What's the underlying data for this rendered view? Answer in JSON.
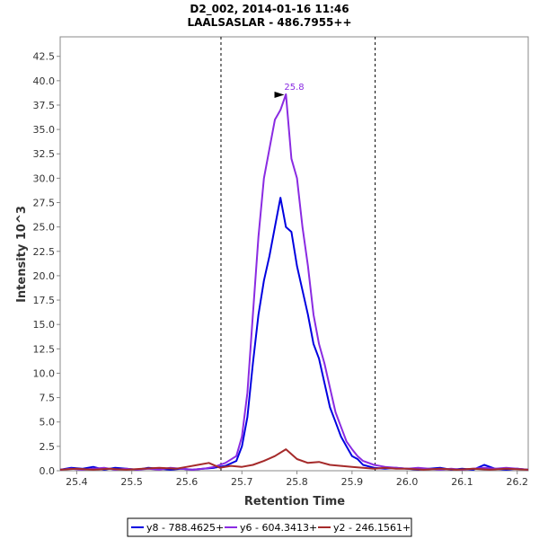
{
  "chart_data": {
    "type": "line",
    "title": "D2_002, 2014-01-16 11:46",
    "subtitle": "LAALSASLAR - 486.7955++",
    "xlabel": "Retention Time",
    "ylabel": "Intensity 10^3",
    "xlim": [
      25.37,
      26.22
    ],
    "ylim": [
      0,
      44.5
    ],
    "xticks": [
      "25.4",
      "25.5",
      "25.6",
      "25.7",
      "25.8",
      "25.9",
      "26.0",
      "26.1",
      "26.2"
    ],
    "yticks": [
      "0.0",
      "2.5",
      "5.0",
      "7.5",
      "10.0",
      "12.5",
      "15.0",
      "17.5",
      "20.0",
      "22.5",
      "25.0",
      "27.5",
      "30.0",
      "32.5",
      "35.0",
      "37.5",
      "40.0",
      "42.5"
    ],
    "boundaries": [
      25.662,
      25.942
    ],
    "peak_annotation": {
      "label": "25.8",
      "x": 25.782,
      "y": 38.6,
      "color": "#8a2be2"
    },
    "legend_position": "bottom",
    "series": [
      {
        "name": "y8 - 788.4625+",
        "color": "#0000e0",
        "x": [
          25.37,
          25.39,
          25.41,
          25.43,
          25.45,
          25.47,
          25.49,
          25.51,
          25.53,
          25.55,
          25.57,
          25.59,
          25.61,
          25.63,
          25.65,
          25.67,
          25.69,
          25.7,
          25.71,
          25.72,
          25.73,
          25.74,
          25.75,
          25.76,
          25.77,
          25.78,
          25.79,
          25.8,
          25.81,
          25.82,
          25.83,
          25.84,
          25.85,
          25.86,
          25.87,
          25.88,
          25.89,
          25.9,
          25.91,
          25.92,
          25.94,
          25.96,
          25.98,
          26.0,
          26.02,
          26.04,
          26.06,
          26.08,
          26.1,
          26.12,
          26.14,
          26.16,
          26.18,
          26.2,
          26.22
        ],
        "values": [
          0.1,
          0.3,
          0.2,
          0.4,
          0.1,
          0.3,
          0.2,
          0.1,
          0.3,
          0.2,
          0.1,
          0.2,
          0.1,
          0.2,
          0.3,
          0.5,
          1.0,
          2.5,
          5.5,
          11.0,
          16.0,
          19.5,
          22.0,
          25.0,
          28.0,
          25.0,
          24.5,
          21.0,
          18.5,
          16.0,
          13.0,
          11.5,
          9.0,
          6.5,
          5.0,
          3.5,
          2.5,
          1.5,
          1.2,
          0.6,
          0.3,
          0.2,
          0.3,
          0.2,
          0.1,
          0.2,
          0.3,
          0.1,
          0.2,
          0.1,
          0.6,
          0.2,
          0.1,
          0.2,
          0.1
        ]
      },
      {
        "name": "y6 - 604.3413+",
        "color": "#8a2be2",
        "x": [
          25.37,
          25.39,
          25.41,
          25.43,
          25.45,
          25.47,
          25.49,
          25.51,
          25.53,
          25.55,
          25.57,
          25.59,
          25.61,
          25.63,
          25.65,
          25.67,
          25.69,
          25.7,
          25.71,
          25.72,
          25.73,
          25.74,
          25.75,
          25.76,
          25.77,
          25.78,
          25.79,
          25.8,
          25.81,
          25.82,
          25.83,
          25.84,
          25.85,
          25.86,
          25.87,
          25.88,
          25.89,
          25.9,
          25.91,
          25.92,
          25.94,
          25.96,
          25.98,
          26.0,
          26.02,
          26.04,
          26.06,
          26.08,
          26.1,
          26.12,
          26.14,
          26.16,
          26.18,
          26.2,
          26.22
        ],
        "values": [
          0.1,
          0.2,
          0.1,
          0.2,
          0.3,
          0.1,
          0.2,
          0.1,
          0.2,
          0.1,
          0.3,
          0.2,
          0.1,
          0.2,
          0.4,
          0.8,
          1.5,
          3.5,
          8.0,
          16.0,
          24.0,
          30.0,
          33.0,
          36.0,
          37.0,
          38.6,
          32.0,
          30.0,
          25.0,
          21.0,
          16.0,
          13.0,
          11.0,
          8.5,
          6.0,
          4.5,
          3.0,
          2.2,
          1.5,
          1.0,
          0.6,
          0.4,
          0.3,
          0.2,
          0.3,
          0.2,
          0.1,
          0.2,
          0.1,
          0.2,
          0.3,
          0.2,
          0.3,
          0.2,
          0.1
        ]
      },
      {
        "name": "y2 - 246.1561+",
        "color": "#a52a2a",
        "x": [
          25.37,
          25.4,
          25.43,
          25.46,
          25.49,
          25.52,
          25.55,
          25.58,
          25.6,
          25.62,
          25.64,
          25.66,
          25.68,
          25.7,
          25.72,
          25.74,
          25.76,
          25.78,
          25.8,
          25.82,
          25.84,
          25.86,
          25.88,
          25.9,
          25.92,
          25.94,
          25.96,
          25.98,
          26.0,
          26.03,
          26.06,
          26.09,
          26.12,
          26.15,
          26.18,
          26.22
        ],
        "values": [
          0.1,
          0.2,
          0.1,
          0.2,
          0.1,
          0.2,
          0.3,
          0.2,
          0.4,
          0.6,
          0.8,
          0.3,
          0.5,
          0.4,
          0.6,
          1.0,
          1.5,
          2.2,
          1.2,
          0.8,
          0.9,
          0.6,
          0.5,
          0.4,
          0.3,
          0.2,
          0.3,
          0.2,
          0.2,
          0.1,
          0.2,
          0.1,
          0.2,
          0.1,
          0.2,
          0.1
        ]
      }
    ]
  }
}
